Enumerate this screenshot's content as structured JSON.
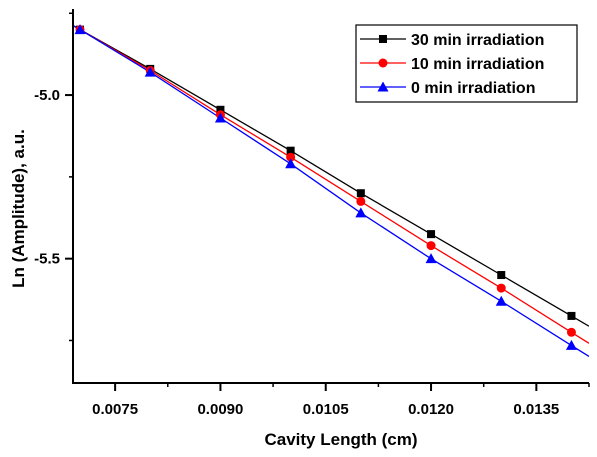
{
  "chart_data": {
    "type": "line",
    "xlabel": "Cavity Length (cm)",
    "ylabel": "Ln (Amplitude), a.u.",
    "xlim": [
      0.0069,
      0.01425
    ],
    "ylim": [
      -5.88,
      -4.74
    ],
    "x_ticks": [
      0.0075,
      0.009,
      0.0105,
      0.012,
      0.0135
    ],
    "x_tick_labels": [
      "0.0075",
      "0.0090",
      "0.0105",
      "0.0120",
      "0.0135"
    ],
    "y_ticks": [
      -5.0,
      -5.5
    ],
    "y_tick_labels": [
      "-5.0",
      "-5.5"
    ],
    "grid": false,
    "legend_position": "top-right",
    "x": [
      0.007,
      0.008,
      0.009,
      0.01,
      0.011,
      0.012,
      0.013,
      0.014
    ],
    "series": [
      {
        "name": "30 min irradiation",
        "color": "#000000",
        "marker": "square",
        "values": [
          -4.8,
          -4.92,
          -5.045,
          -5.17,
          -5.3,
          -5.425,
          -5.55,
          -5.675
        ]
      },
      {
        "name": "10 min irradiation",
        "color": "#ff0000",
        "marker": "circle",
        "values": [
          -4.8,
          -4.925,
          -5.06,
          -5.19,
          -5.325,
          -5.46,
          -5.59,
          -5.725
        ]
      },
      {
        "name": "0   min irradiation",
        "color": "#0000ff",
        "marker": "triangle",
        "values": [
          -4.8,
          -4.93,
          -5.07,
          -5.21,
          -5.36,
          -5.5,
          -5.63,
          -5.765
        ]
      }
    ]
  }
}
